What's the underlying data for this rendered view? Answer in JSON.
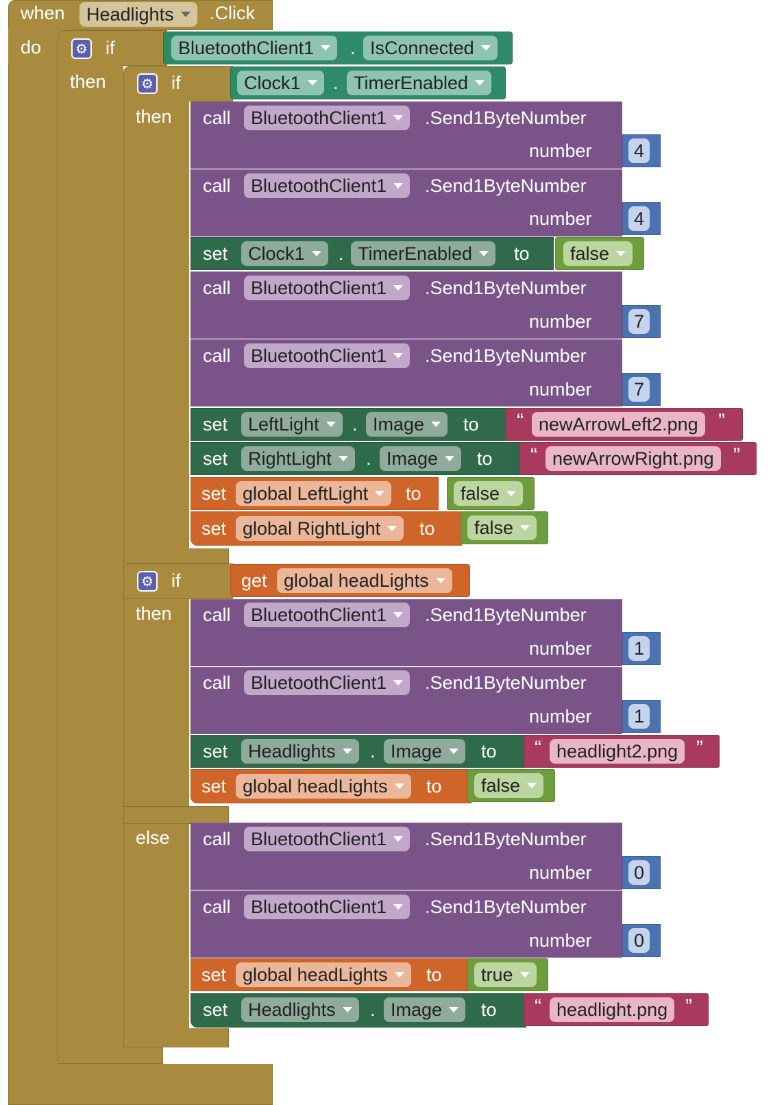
{
  "event": {
    "when": "when",
    "component": "Headlights",
    "event": ".Click",
    "do": "do"
  },
  "if1": {
    "if": "if",
    "then": "then",
    "component": "BluetoothClient1",
    "dot": ".",
    "prop": "IsConnected"
  },
  "if2": {
    "if": "if",
    "then": "then",
    "component": "Clock1",
    "dot": ".",
    "prop": "TimerEnabled"
  },
  "if3": {
    "if": "if",
    "then": "then",
    "else": "else",
    "get": "get",
    "var": "global headLights"
  },
  "call": {
    "keyword": "call",
    "component": "BluetoothClient1",
    "method": ".Send1ByteNumber",
    "param": "number"
  },
  "set": {
    "keyword": "set",
    "to": "to",
    "dot": "."
  },
  "quote": {
    "open": "“",
    "close": "”"
  },
  "blocks": {
    "n1": "4",
    "n2": "4",
    "set_clock": {
      "component": "Clock1",
      "prop": "TimerEnabled",
      "value": "false"
    },
    "n3": "7",
    "n4": "7",
    "set_left": {
      "component": "LeftLight",
      "prop": "Image",
      "value": "newArrowLeft2.png"
    },
    "set_right": {
      "component": "RightLight",
      "prop": "Image",
      "value": "newArrowRight.png"
    },
    "set_gl": {
      "var": "global LeftLight",
      "value": "false"
    },
    "set_gr": {
      "var": "global RightLight",
      "value": "false"
    },
    "n5": "1",
    "n6": "1",
    "set_head2": {
      "component": "Headlights",
      "prop": "Image",
      "value": "headlight2.png"
    },
    "set_gh1": {
      "var": "global headLights",
      "value": "false"
    },
    "n7": "0",
    "n8": "0",
    "set_gh2": {
      "var": "global headLights",
      "value": "true"
    },
    "set_head": {
      "component": "Headlights",
      "prop": "Image",
      "value": "headlight.png"
    }
  },
  "colors": {
    "event": "#a88b3f",
    "procedure": "#7a5388",
    "component_setter": "#2f6a4a",
    "variable": "#d0652a",
    "logic": "#6e9e3c",
    "math": "#4b73b0",
    "text": "#a83a5e"
  }
}
